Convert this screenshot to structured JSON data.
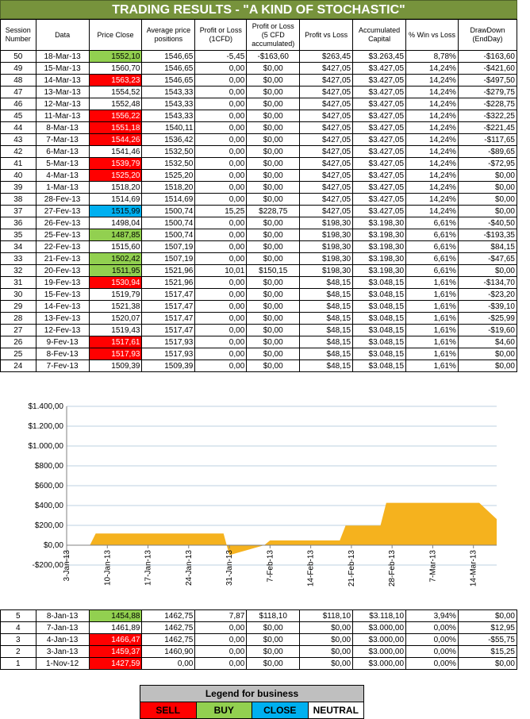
{
  "title": "TRADING RESULTS - \"A KIND OF STOCHASTIC\"",
  "headers": [
    "Session Number",
    "Data",
    "Price Close",
    "Average price positions",
    "Profit or Loss (1CFD)",
    "Profit or Loss (5 CFD accumulated)",
    "Profit vs Loss",
    "Accumulated Capital",
    "% Win vs Loss",
    "DrawDown (EndDay)"
  ],
  "colors": {
    "sell": "#ff0000",
    "buy": "#92d050",
    "close": "#00b0f0",
    "neutral": "#ffffff",
    "area": "#f5b21e",
    "title_bg": "#77933c"
  },
  "rows_top": [
    {
      "s": "50",
      "d": "18-Mar-13",
      "p": "1552,10",
      "t": "buy",
      "a": "1546,65",
      "pl": "-5,45",
      "pl5": "-$163,60",
      "pv": "$263,45",
      "ac": "$3.263,45",
      "w": "8,78%",
      "dd": "-$163,60"
    },
    {
      "s": "49",
      "d": "15-Mar-13",
      "p": "1560,70",
      "t": "",
      "a": "1546,65",
      "pl": "0,00",
      "pl5": "$0,00",
      "pv": "$427,05",
      "ac": "$3.427,05",
      "w": "14,24%",
      "dd": "-$421,60"
    },
    {
      "s": "48",
      "d": "14-Mar-13",
      "p": "1563,23",
      "t": "sell",
      "a": "1546,65",
      "pl": "0,00",
      "pl5": "$0,00",
      "pv": "$427,05",
      "ac": "$3.427,05",
      "w": "14,24%",
      "dd": "-$497,50"
    },
    {
      "s": "47",
      "d": "13-Mar-13",
      "p": "1554,52",
      "t": "",
      "a": "1543,33",
      "pl": "0,00",
      "pl5": "$0,00",
      "pv": "$427,05",
      "ac": "$3.427,05",
      "w": "14,24%",
      "dd": "-$279,75"
    },
    {
      "s": "46",
      "d": "12-Mar-13",
      "p": "1552,48",
      "t": "",
      "a": "1543,33",
      "pl": "0,00",
      "pl5": "$0,00",
      "pv": "$427,05",
      "ac": "$3.427,05",
      "w": "14,24%",
      "dd": "-$228,75"
    },
    {
      "s": "45",
      "d": "11-Mar-13",
      "p": "1556,22",
      "t": "sell",
      "a": "1543,33",
      "pl": "0,00",
      "pl5": "$0,00",
      "pv": "$427,05",
      "ac": "$3.427,05",
      "w": "14,24%",
      "dd": "-$322,25"
    },
    {
      "s": "44",
      "d": "8-Mar-13",
      "p": "1551,18",
      "t": "sell",
      "a": "1540,11",
      "pl": "0,00",
      "pl5": "$0,00",
      "pv": "$427,05",
      "ac": "$3.427,05",
      "w": "14,24%",
      "dd": "-$221,45"
    },
    {
      "s": "43",
      "d": "7-Mar-13",
      "p": "1544,26",
      "t": "sell",
      "a": "1536,42",
      "pl": "0,00",
      "pl5": "$0,00",
      "pv": "$427,05",
      "ac": "$3.427,05",
      "w": "14,24%",
      "dd": "-$117,65"
    },
    {
      "s": "42",
      "d": "6-Mar-13",
      "p": "1541,46",
      "t": "",
      "a": "1532,50",
      "pl": "0,00",
      "pl5": "$0,00",
      "pv": "$427,05",
      "ac": "$3.427,05",
      "w": "14,24%",
      "dd": "-$89,65"
    },
    {
      "s": "41",
      "d": "5-Mar-13",
      "p": "1539,79",
      "t": "sell",
      "a": "1532,50",
      "pl": "0,00",
      "pl5": "$0,00",
      "pv": "$427,05",
      "ac": "$3.427,05",
      "w": "14,24%",
      "dd": "-$72,95"
    },
    {
      "s": "40",
      "d": "4-Mar-13",
      "p": "1525,20",
      "t": "sell",
      "a": "1525,20",
      "pl": "0,00",
      "pl5": "$0,00",
      "pv": "$427,05",
      "ac": "$3.427,05",
      "w": "14,24%",
      "dd": "$0,00"
    },
    {
      "s": "39",
      "d": "1-Mar-13",
      "p": "1518,20",
      "t": "",
      "a": "1518,20",
      "pl": "0,00",
      "pl5": "$0,00",
      "pv": "$427,05",
      "ac": "$3.427,05",
      "w": "14,24%",
      "dd": "$0,00"
    },
    {
      "s": "38",
      "d": "28-Fev-13",
      "p": "1514,69",
      "t": "",
      "a": "1514,69",
      "pl": "0,00",
      "pl5": "$0,00",
      "pv": "$427,05",
      "ac": "$3.427,05",
      "w": "14,24%",
      "dd": "$0,00"
    },
    {
      "s": "37",
      "d": "27-Fev-13",
      "p": "1515,99",
      "t": "close",
      "a": "1500,74",
      "pl": "15,25",
      "pl5": "$228,75",
      "pv": "$427,05",
      "ac": "$3.427,05",
      "w": "14,24%",
      "dd": "$0,00"
    },
    {
      "s": "36",
      "d": "26-Fev-13",
      "p": "1498,04",
      "t": "",
      "a": "1500,74",
      "pl": "0,00",
      "pl5": "$0,00",
      "pv": "$198,30",
      "ac": "$3.198,30",
      "w": "6,61%",
      "dd": "-$40,50"
    },
    {
      "s": "35",
      "d": "25-Fev-13",
      "p": "1487,85",
      "t": "buy",
      "a": "1500,74",
      "pl": "0,00",
      "pl5": "$0,00",
      "pv": "$198,30",
      "ac": "$3.198,30",
      "w": "6,61%",
      "dd": "-$193,35"
    },
    {
      "s": "34",
      "d": "22-Fev-13",
      "p": "1515,60",
      "t": "",
      "a": "1507,19",
      "pl": "0,00",
      "pl5": "$0,00",
      "pv": "$198,30",
      "ac": "$3.198,30",
      "w": "6,61%",
      "dd": "$84,15"
    },
    {
      "s": "33",
      "d": "21-Fev-13",
      "p": "1502,42",
      "t": "buy",
      "a": "1507,19",
      "pl": "0,00",
      "pl5": "$0,00",
      "pv": "$198,30",
      "ac": "$3.198,30",
      "w": "6,61%",
      "dd": "-$47,65"
    },
    {
      "s": "32",
      "d": "20-Fev-13",
      "p": "1511,95",
      "t": "buy",
      "a": "1521,96",
      "pl": "10,01",
      "pl5": "$150,15",
      "pv": "$198,30",
      "ac": "$3.198,30",
      "w": "6,61%",
      "dd": "$0,00"
    },
    {
      "s": "31",
      "d": "19-Fev-13",
      "p": "1530,94",
      "t": "sell",
      "a": "1521,96",
      "pl": "0,00",
      "pl5": "$0,00",
      "pv": "$48,15",
      "ac": "$3.048,15",
      "w": "1,61%",
      "dd": "-$134,70"
    },
    {
      "s": "30",
      "d": "15-Fev-13",
      "p": "1519,79",
      "t": "",
      "a": "1517,47",
      "pl": "0,00",
      "pl5": "$0,00",
      "pv": "$48,15",
      "ac": "$3.048,15",
      "w": "1,61%",
      "dd": "-$23,20"
    },
    {
      "s": "29",
      "d": "14-Fev-13",
      "p": "1521,38",
      "t": "",
      "a": "1517,47",
      "pl": "0,00",
      "pl5": "$0,00",
      "pv": "$48,15",
      "ac": "$3.048,15",
      "w": "1,61%",
      "dd": "-$39,10"
    },
    {
      "s": "28",
      "d": "13-Fev-13",
      "p": "1520,07",
      "t": "",
      "a": "1517,47",
      "pl": "0,00",
      "pl5": "$0,00",
      "pv": "$48,15",
      "ac": "$3.048,15",
      "w": "1,61%",
      "dd": "-$25,99"
    },
    {
      "s": "27",
      "d": "12-Fev-13",
      "p": "1519,43",
      "t": "",
      "a": "1517,47",
      "pl": "0,00",
      "pl5": "$0,00",
      "pv": "$48,15",
      "ac": "$3.048,15",
      "w": "1,61%",
      "dd": "-$19,60"
    },
    {
      "s": "26",
      "d": "9-Fev-13",
      "p": "1517,61",
      "t": "sell",
      "a": "1517,93",
      "pl": "0,00",
      "pl5": "$0,00",
      "pv": "$48,15",
      "ac": "$3.048,15",
      "w": "1,61%",
      "dd": "$4,60"
    },
    {
      "s": "25",
      "d": "8-Fev-13",
      "p": "1517,93",
      "t": "sell",
      "a": "1517,93",
      "pl": "0,00",
      "pl5": "$0,00",
      "pv": "$48,15",
      "ac": "$3.048,15",
      "w": "1,61%",
      "dd": "$0,00"
    },
    {
      "s": "24",
      "d": "7-Fev-13",
      "p": "1509,39",
      "t": "",
      "a": "1509,39",
      "pl": "0,00",
      "pl5": "$0,00",
      "pv": "$48,15",
      "ac": "$3.048,15",
      "w": "1,61%",
      "dd": "$0,00"
    }
  ],
  "rows_bottom": [
    {
      "s": "5",
      "d": "8-Jan-13",
      "p": "1454,88",
      "t": "buy",
      "a": "1462,75",
      "pl": "7,87",
      "pl5": "$118,10",
      "pv": "$118,10",
      "ac": "$3.118,10",
      "w": "3,94%",
      "dd": "$0,00"
    },
    {
      "s": "4",
      "d": "7-Jan-13",
      "p": "1461,89",
      "t": "",
      "a": "1462,75",
      "pl": "0,00",
      "pl5": "$0,00",
      "pv": "$0,00",
      "ac": "$3.000,00",
      "w": "0,00%",
      "dd": "$12,95"
    },
    {
      "s": "3",
      "d": "4-Jan-13",
      "p": "1466,47",
      "t": "sell",
      "a": "1462,75",
      "pl": "0,00",
      "pl5": "$0,00",
      "pv": "$0,00",
      "ac": "$3.000,00",
      "w": "0,00%",
      "dd": "-$55,75"
    },
    {
      "s": "2",
      "d": "3-Jan-13",
      "p": "1459,37",
      "t": "sell",
      "a": "1460,90",
      "pl": "0,00",
      "pl5": "$0,00",
      "pv": "$0,00",
      "ac": "$3.000,00",
      "w": "0,00%",
      "dd": "$15,25"
    },
    {
      "s": "1",
      "d": "1-Nov-12",
      "p": "1427,59",
      "t": "sell",
      "a": "0,00",
      "pl": "0,00",
      "pl5": "$0,00",
      "pv": "$0,00",
      "ac": "$3.000,00",
      "w": "0,00%",
      "dd": "$0,00"
    }
  ],
  "chart_data": {
    "type": "area",
    "title": "",
    "xlabel": "",
    "ylabel": "",
    "ylim": [
      -200,
      1400
    ],
    "yticks": [
      "-$200,00",
      "$0,00",
      "$200,00",
      "$400,00",
      "$600,00",
      "$800,00",
      "$1.000,00",
      "$1.200,00",
      "$1.400,00"
    ],
    "xticks": [
      "3-Jan-13",
      "10-Jan-13",
      "17-Jan-13",
      "24-Jan-13",
      "31-Jan-13",
      "7-Feb-13",
      "14-Feb-13",
      "21-Feb-13",
      "28-Feb-13",
      "7-Mar-13",
      "14-Mar-13"
    ],
    "x": [
      "3-Jan-13",
      "7-Jan-13",
      "8-Jan-13",
      "30-Jan-13",
      "31-Jan-13",
      "6-Feb-13",
      "7-Feb-13",
      "19-Feb-13",
      "20-Feb-13",
      "26-Feb-13",
      "27-Feb-13",
      "15-Mar-13",
      "18-Mar-13"
    ],
    "values": [
      0,
      0,
      118,
      118,
      -100,
      0,
      48,
      48,
      198,
      198,
      427,
      427,
      263
    ],
    "grid": true
  },
  "legend": {
    "title": "Legend for business",
    "items": [
      "SELL",
      "BUY",
      "CLOSE",
      "NEUTRAL"
    ]
  }
}
